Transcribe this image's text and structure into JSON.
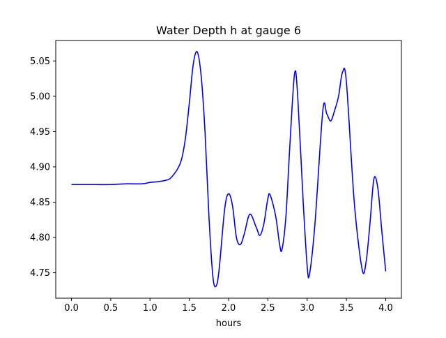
{
  "chart_data": {
    "type": "line",
    "title": "Water Depth h at gauge 6",
    "xlabel": "hours",
    "ylabel": "",
    "xlim": [
      -0.2,
      4.2
    ],
    "ylim": [
      4.714,
      5.079
    ],
    "x_ticks": [
      0.0,
      0.5,
      1.0,
      1.5,
      2.0,
      2.5,
      3.0,
      3.5,
      4.0
    ],
    "x_tick_labels": [
      "0.0",
      "0.5",
      "1.0",
      "1.5",
      "2.0",
      "2.5",
      "3.0",
      "3.5",
      "4.0"
    ],
    "y_ticks": [
      4.75,
      4.8,
      4.85,
      4.9,
      4.95,
      5.0,
      5.05
    ],
    "y_tick_labels": [
      "4.75",
      "4.80",
      "4.85",
      "4.90",
      "4.95",
      "5.00",
      "5.05"
    ],
    "grid": false,
    "legend": "none",
    "series": [
      {
        "color": "#0000ff",
        "x": [
          0.0,
          0.3,
          0.5,
          0.7,
          0.9,
          1.0,
          1.1,
          1.2,
          1.25,
          1.3,
          1.35,
          1.4,
          1.45,
          1.5,
          1.55,
          1.6,
          1.65,
          1.7,
          1.75,
          1.8,
          1.84,
          1.88,
          1.95,
          2.0,
          2.05,
          2.1,
          2.15,
          2.2,
          2.27,
          2.35,
          2.4,
          2.45,
          2.5,
          2.53,
          2.6,
          2.65,
          2.68,
          2.73,
          2.78,
          2.84,
          2.88,
          2.95,
          3.0,
          3.03,
          3.1,
          3.2,
          3.25,
          3.3,
          3.35,
          3.4,
          3.45,
          3.5,
          3.6,
          3.7,
          3.75,
          3.8,
          3.85,
          3.9,
          3.95,
          4.0
        ],
        "y": [
          4.875,
          4.875,
          4.875,
          4.876,
          4.876,
          4.878,
          4.879,
          4.881,
          4.883,
          4.889,
          4.897,
          4.91,
          4.94,
          4.99,
          5.045,
          5.063,
          5.03,
          4.95,
          4.83,
          4.745,
          4.731,
          4.755,
          4.84,
          4.862,
          4.845,
          4.8,
          4.79,
          4.805,
          4.833,
          4.815,
          4.803,
          4.82,
          4.855,
          4.86,
          4.83,
          4.79,
          4.783,
          4.83,
          4.93,
          5.032,
          5.0,
          4.85,
          4.76,
          4.748,
          4.82,
          4.98,
          4.975,
          4.965,
          4.98,
          5.0,
          5.034,
          5.02,
          4.85,
          4.755,
          4.765,
          4.82,
          4.883,
          4.87,
          4.81,
          4.752
        ]
      }
    ]
  }
}
